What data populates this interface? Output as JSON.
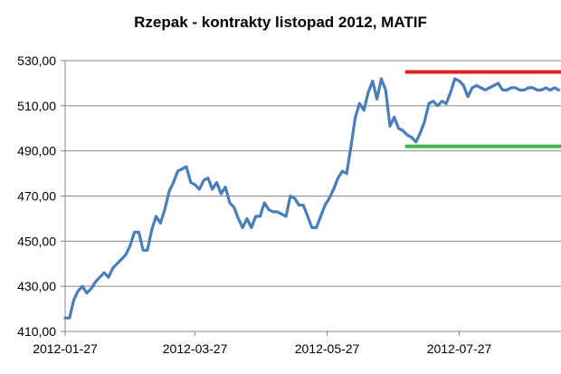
{
  "chart_data": {
    "type": "line",
    "title": "Rzepak - kontrakty listopad 2012, MATIF",
    "xlabel": "",
    "ylabel": "",
    "ylim": [
      410,
      530
    ],
    "y_ticks": [
      "410,00",
      "430,00",
      "450,00",
      "470,00",
      "490,00",
      "510,00",
      "530,00"
    ],
    "x_ticks": [
      "2012-01-27",
      "2012-03-27",
      "2012-05-27",
      "2012-07-27"
    ],
    "x_range": [
      "2012-01-27",
      "2012-09-12"
    ],
    "grid": "horizontal",
    "series": [
      {
        "color": "#4a7ebb",
        "x": [
          "2012-01-27",
          "2012-01-29",
          "2012-01-31",
          "2012-02-02",
          "2012-02-04",
          "2012-02-06",
          "2012-02-08",
          "2012-02-10",
          "2012-02-12",
          "2012-02-14",
          "2012-02-16",
          "2012-02-18",
          "2012-02-20",
          "2012-02-22",
          "2012-02-24",
          "2012-02-26",
          "2012-02-28",
          "2012-03-01",
          "2012-03-03",
          "2012-03-05",
          "2012-03-07",
          "2012-03-09",
          "2012-03-11",
          "2012-03-13",
          "2012-03-15",
          "2012-03-17",
          "2012-03-19",
          "2012-03-21",
          "2012-03-23",
          "2012-03-25",
          "2012-03-27",
          "2012-03-29",
          "2012-03-31",
          "2012-04-02",
          "2012-04-04",
          "2012-04-06",
          "2012-04-08",
          "2012-04-10",
          "2012-04-12",
          "2012-04-14",
          "2012-04-16",
          "2012-04-18",
          "2012-04-20",
          "2012-04-22",
          "2012-04-24",
          "2012-04-26",
          "2012-04-28",
          "2012-04-30",
          "2012-05-02",
          "2012-05-04",
          "2012-05-06",
          "2012-05-08",
          "2012-05-10",
          "2012-05-12",
          "2012-05-14",
          "2012-05-16",
          "2012-05-18",
          "2012-05-20",
          "2012-05-22",
          "2012-05-24",
          "2012-05-26",
          "2012-05-28",
          "2012-05-30",
          "2012-06-01",
          "2012-06-03",
          "2012-06-05",
          "2012-06-07",
          "2012-06-09",
          "2012-06-11",
          "2012-06-13",
          "2012-06-15",
          "2012-06-17",
          "2012-06-19",
          "2012-06-21",
          "2012-06-23",
          "2012-06-25",
          "2012-06-27",
          "2012-06-29",
          "2012-07-01",
          "2012-07-03",
          "2012-07-05",
          "2012-07-07",
          "2012-07-09",
          "2012-07-11",
          "2012-07-13",
          "2012-07-15",
          "2012-07-17",
          "2012-07-19",
          "2012-07-21",
          "2012-07-23",
          "2012-07-25",
          "2012-07-27",
          "2012-07-29",
          "2012-07-31",
          "2012-08-02",
          "2012-08-04",
          "2012-08-06",
          "2012-08-08",
          "2012-08-10",
          "2012-08-12",
          "2012-08-14",
          "2012-08-16",
          "2012-08-18",
          "2012-08-20",
          "2012-08-22",
          "2012-08-24",
          "2012-08-26",
          "2012-08-28",
          "2012-08-30",
          "2012-09-01",
          "2012-09-03",
          "2012-09-05",
          "2012-09-07",
          "2012-09-09",
          "2012-09-11"
        ],
        "values": [
          416,
          416,
          424,
          428,
          430,
          427,
          429,
          432,
          434,
          436,
          434,
          438,
          440,
          442,
          444,
          448,
          454,
          454,
          446,
          446,
          455,
          461,
          458,
          464,
          472,
          476,
          481,
          482,
          483,
          476,
          475,
          473,
          477,
          478,
          473,
          476,
          471,
          474,
          467,
          465,
          460,
          456,
          460,
          456,
          461,
          461,
          467,
          464,
          463,
          463,
          462,
          461,
          470,
          469,
          466,
          466,
          461,
          456,
          456,
          461,
          466,
          469,
          473,
          478,
          481,
          480,
          492,
          505,
          511,
          508,
          516,
          521,
          513,
          522,
          517,
          501,
          505,
          500,
          499,
          497,
          496,
          494,
          498,
          503,
          511,
          512,
          510,
          512,
          511,
          516,
          522,
          521,
          519,
          514,
          518,
          519,
          518,
          517,
          518,
          519,
          520,
          517,
          517,
          518,
          518,
          517,
          517,
          518,
          518,
          517,
          517,
          518,
          517,
          518,
          517
        ]
      }
    ],
    "annotations": [
      {
        "type": "horizontal-line",
        "y": 525,
        "x_from": "2012-07-02",
        "x_to": "2012-09-12",
        "color": "#e02020"
      },
      {
        "type": "horizontal-line",
        "y": 492,
        "x_from": "2012-07-02",
        "x_to": "2012-09-12",
        "color": "#3cb44b"
      }
    ]
  }
}
